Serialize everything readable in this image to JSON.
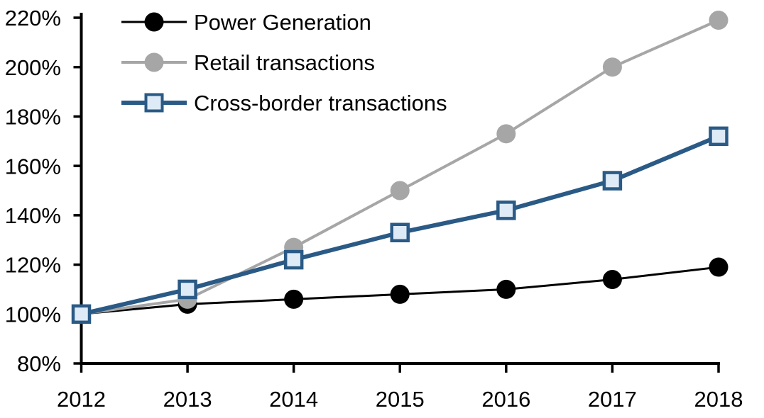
{
  "chart_data": {
    "type": "line",
    "title": "",
    "xlabel": "",
    "ylabel": "",
    "x": [
      "2012",
      "2013",
      "2014",
      "2015",
      "2016",
      "2017",
      "2018"
    ],
    "series": [
      {
        "name": "Power Generation",
        "values": [
          100,
          104,
          106,
          108,
          110,
          114,
          119
        ],
        "color": "#000000",
        "marker": "circle",
        "marker_fill": "#000000",
        "line_width": 3
      },
      {
        "name": "Retail transactions",
        "values": [
          100,
          106,
          127,
          150,
          173,
          200,
          219
        ],
        "color": "#A6A6A6",
        "marker": "circle",
        "marker_fill": "#A6A6A6",
        "line_width": 4
      },
      {
        "name": "Cross-border transactions",
        "values": [
          100,
          110,
          122,
          133,
          142,
          154,
          172
        ],
        "color": "#2A5A85",
        "marker": "square",
        "marker_fill": "#DEEBF7",
        "line_width": 6
      }
    ],
    "ylim": [
      80,
      220
    ],
    "y_ticks": [
      80,
      100,
      120,
      140,
      160,
      180,
      200,
      220
    ],
    "y_tick_labels": [
      "80%",
      "100%",
      "120%",
      "140%",
      "160%",
      "180%",
      "200%",
      "220%"
    ],
    "grid": false,
    "legend_position": "top-left",
    "axis_color": "#000000"
  }
}
